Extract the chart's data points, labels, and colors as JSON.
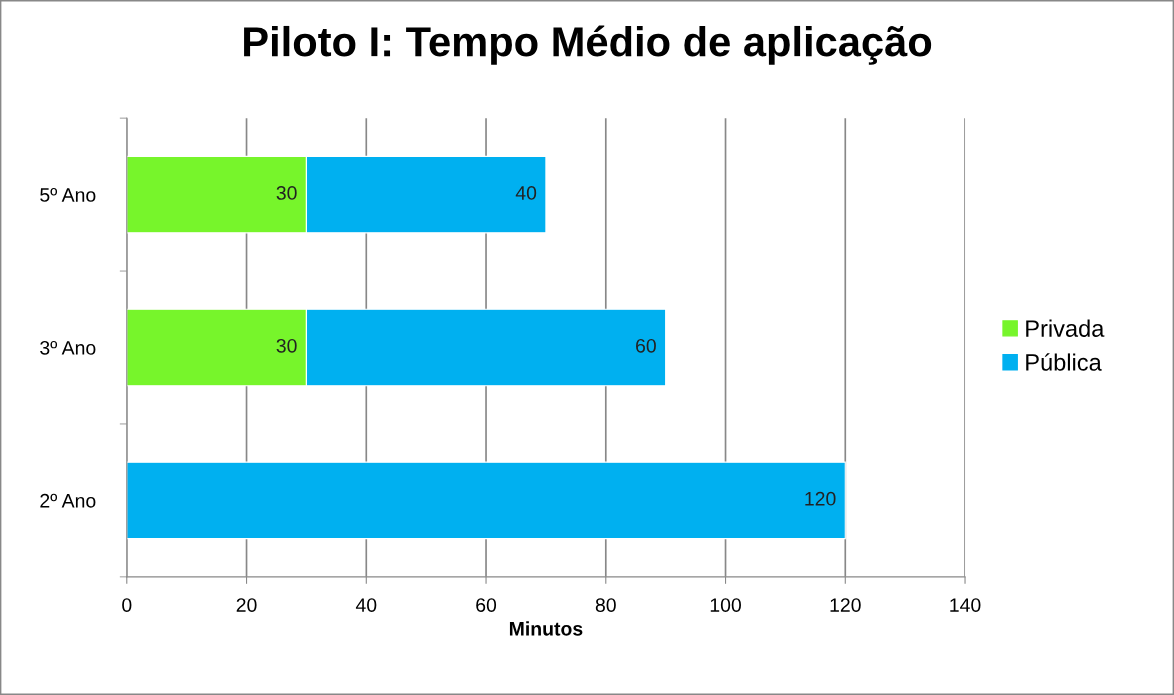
{
  "chart_data": {
    "type": "bar",
    "orientation": "horizontal",
    "stacked": true,
    "title": "Piloto I: Tempo Médio de aplicação",
    "xlabel": "Minutos",
    "categories": [
      "5º Ano",
      "3º Ano",
      "2º Ano"
    ],
    "series": [
      {
        "name": "Privada",
        "color": "#77f52b",
        "values": [
          30,
          30,
          null
        ]
      },
      {
        "name": "Pública",
        "color": "#00b0f0",
        "values": [
          40,
          60,
          120
        ]
      }
    ],
    "xlim": [
      0,
      140
    ],
    "xticks": [
      0,
      20,
      40,
      60,
      80,
      100,
      120,
      140
    ],
    "grid": "x",
    "legend": "right",
    "data_labels": true
  }
}
